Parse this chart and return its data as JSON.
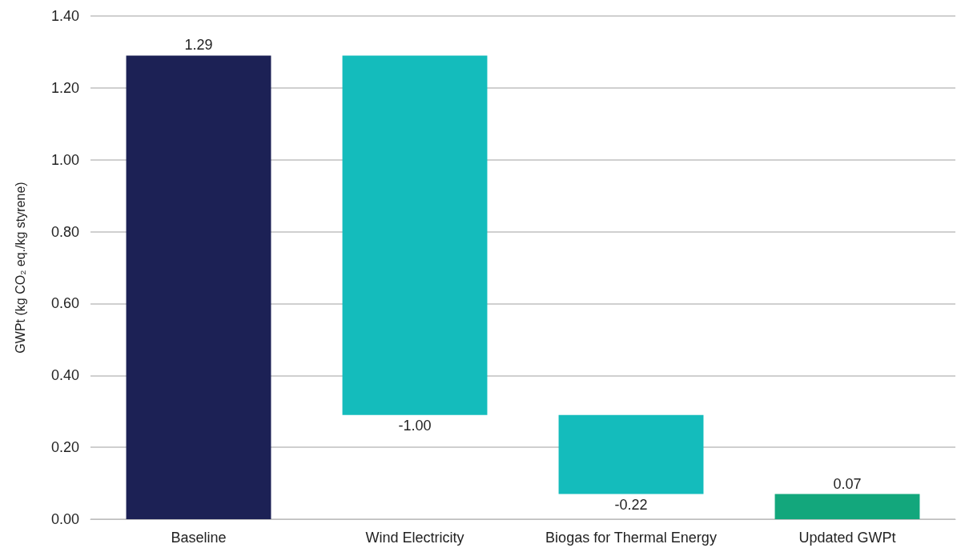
{
  "chart_data": {
    "type": "bar",
    "ylabel": "GWPt (kg CO₂ eq./kg styrene)",
    "categories": [
      "Baseline",
      "Wind Electricity",
      "Biogas for Thermal Energy",
      "Updated GWPt"
    ],
    "values": [
      1.29,
      -1.0,
      -0.22,
      0.07
    ],
    "base": [
      0,
      1.29,
      0.29,
      0
    ],
    "colors": [
      "#1c2155",
      "#14bcbc",
      "#14bcbc",
      "#13a77c"
    ],
    "value_labels": [
      "1.29",
      "-1.00",
      "-0.22",
      "0.07"
    ],
    "ylim": [
      0,
      1.4
    ],
    "yticks": [
      {
        "value": 0,
        "label": "0.00"
      },
      {
        "value": 0.2,
        "label": "0.20"
      },
      {
        "value": 0.4,
        "label": "0.40"
      },
      {
        "value": 0.6,
        "label": "0.60"
      },
      {
        "value": 0.8,
        "label": "0.80"
      },
      {
        "value": 1.0,
        "label": "1.00"
      },
      {
        "value": 1.2,
        "label": "1.20"
      },
      {
        "value": 1.4,
        "label": "1.40"
      }
    ],
    "grid": "y"
  }
}
